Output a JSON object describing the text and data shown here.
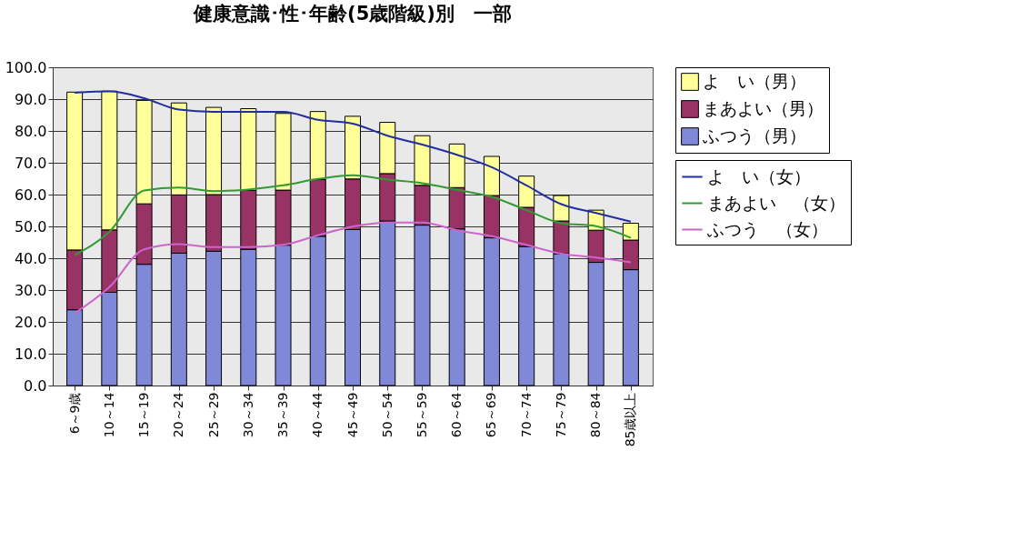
{
  "chart_data": {
    "type": "bar",
    "title": "健康意識･性･年齢(5歳階級)別　一部",
    "stacked": true,
    "grid": "y",
    "legend": "right",
    "categories": [
      "6～9歳",
      "10～14",
      "15～19",
      "20～24",
      "25～29",
      "30～34",
      "35～39",
      "40～44",
      "45～49",
      "50～54",
      "55～59",
      "60～64",
      "65～69",
      "70～74",
      "75～79",
      "80～84",
      "85歳以上"
    ],
    "ylim": [
      0,
      100
    ],
    "yticks": [
      {
        "value": 0,
        "label": "0.0"
      },
      {
        "value": 10,
        "label": "10.0"
      },
      {
        "value": 20,
        "label": "20.0"
      },
      {
        "value": 30,
        "label": "30.0"
      },
      {
        "value": 40,
        "label": "40.0"
      },
      {
        "value": 50,
        "label": "50.0"
      },
      {
        "value": 60,
        "label": "60.0"
      },
      {
        "value": 70,
        "label": "70.0"
      },
      {
        "value": 80,
        "label": "80.0"
      },
      {
        "value": 90,
        "label": "90.0"
      },
      {
        "value": 100,
        "label": "100.0"
      }
    ],
    "series": [
      {
        "name": "ふつう（男）",
        "color": "#8088d8",
        "values": [
          23.8,
          29.3,
          38.1,
          41.6,
          42.2,
          42.8,
          44.1,
          46.9,
          49.0,
          51.7,
          50.4,
          49.2,
          46.4,
          43.7,
          41.4,
          38.7,
          36.4
        ]
      },
      {
        "name": "まあよい（男）",
        "color": "#993366",
        "values": [
          18.8,
          19.6,
          19.0,
          18.3,
          17.8,
          18.5,
          17.3,
          17.8,
          15.9,
          14.9,
          12.5,
          13.0,
          13.3,
          12.3,
          10.3,
          10.1,
          9.3
        ]
      },
      {
        "name": "よ　い（男）",
        "color": "#ffff99",
        "values": [
          49.6,
          43.6,
          32.5,
          28.9,
          27.4,
          25.7,
          24.1,
          21.4,
          19.7,
          16.1,
          15.6,
          13.7,
          12.3,
          9.8,
          8.0,
          6.3,
          5.3
        ]
      },
      {
        "name": "よ　い（女）",
        "type": "line",
        "color": "#1f2f9f",
        "values": [
          92.0,
          92.4,
          90.3,
          86.7,
          86.0,
          86.0,
          86.0,
          83.5,
          82.3,
          78.5,
          75.7,
          72.5,
          68.6,
          62.9,
          57.0,
          54.2,
          51.5
        ]
      },
      {
        "name": "まあよい　（女）",
        "type": "line",
        "color": "#339933",
        "values": [
          41.0,
          48.3,
          61.3,
          62.2,
          61.1,
          61.6,
          62.9,
          64.9,
          66.1,
          64.7,
          63.6,
          61.5,
          59.3,
          55.1,
          51.0,
          50.1,
          46.4
        ]
      },
      {
        "name": "ふつう　（女）",
        "type": "line",
        "color": "#cc66cc",
        "values": [
          22.7,
          30.9,
          42.8,
          44.4,
          43.5,
          43.5,
          44.2,
          47.2,
          49.9,
          51.2,
          51.2,
          48.8,
          46.9,
          44.2,
          41.4,
          40.2,
          38.7
        ]
      }
    ]
  }
}
